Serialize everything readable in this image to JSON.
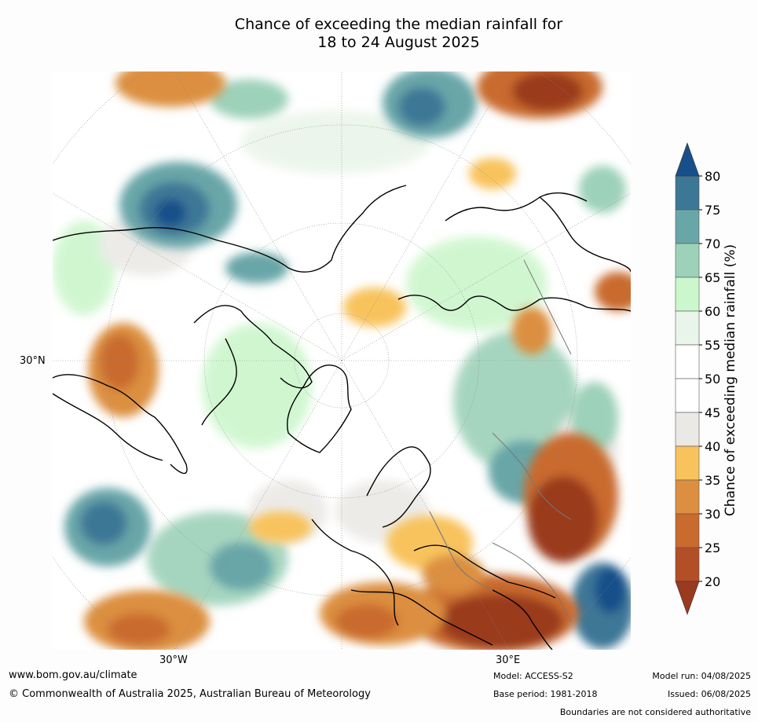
{
  "title": {
    "line1": "Chance of exceeding the median rainfall for",
    "line2": "18 to 24 August 2025"
  },
  "map": {
    "projection": "north-polar-stereographic",
    "lat_label": "30°N",
    "lon_labels": [
      "30°W",
      "30°E"
    ]
  },
  "legend": {
    "title": "Chance of exceeding median rainfall (%)",
    "ticks": [
      "20",
      "25",
      "30",
      "35",
      "40",
      "45",
      "50",
      "55",
      "60",
      "65",
      "70",
      "75",
      "80"
    ],
    "colors": [
      "#9a3a1f",
      "#b34f26",
      "#c96a2f",
      "#dc8f40",
      "#f8c35d",
      "#ebe9e6",
      "#ffffff",
      "#ffffff",
      "#eaf5e9",
      "#ccf6cc",
      "#9dd1b9",
      "#69a6a8",
      "#3d7796",
      "#174f8a"
    ],
    "top_arrow_color": "#174f8a",
    "bottom_arrow_color": "#9a3a1f"
  },
  "footer": {
    "website": "www.bom.gov.au/climate",
    "copyright": "© Commonwealth of Australia 2025, Australian Bureau of Meteorology",
    "model": "Model: ACCESS-S2",
    "base_period": "Base period: 1981-2018",
    "model_run": "Model run: 04/08/2025",
    "issued": "Issued: 06/08/2025",
    "disclaimer": "Boundaries are not considered authoritative"
  }
}
